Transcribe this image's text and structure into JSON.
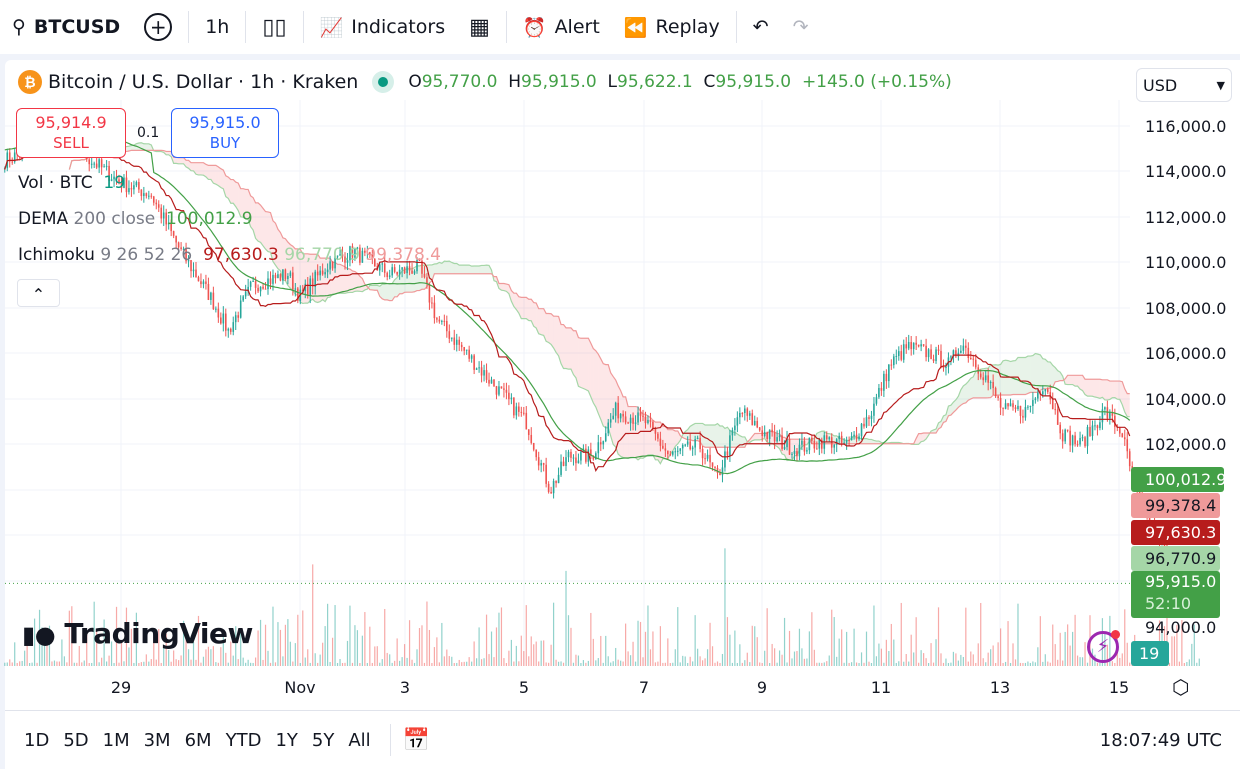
{
  "toolbar": {
    "symbol": "BTCUSD",
    "interval": "1h",
    "indicators": "Indicators",
    "alert": "Alert",
    "replay": "Replay"
  },
  "legend": {
    "title": "Bitcoin / U.S. Dollar · 1h · Kraken",
    "o_label": "O",
    "o": "95,770.0",
    "h_label": "H",
    "h": "95,915.0",
    "l_label": "L",
    "l": "95,622.1",
    "c_label": "C",
    "c": "95,915.0",
    "change": "+145.0 (+0.15%)"
  },
  "currency": "USD",
  "trade": {
    "sell_price": "95,914.9",
    "sell_label": "SELL",
    "spread": "0.1",
    "buy_price": "95,915.0",
    "buy_label": "BUY"
  },
  "indicators": {
    "vol": {
      "name": "Vol · BTC",
      "value": "19"
    },
    "dema": {
      "name": "DEMA",
      "params": "200 close",
      "value": "100,012.9"
    },
    "ichimoku": {
      "name": "Ichimoku",
      "params": "9 26 52 26",
      "v1": "97,630.3",
      "v2": "96,770.9",
      "v3": "99,378.4"
    }
  },
  "price_axis": [
    "116,000.0",
    "114,000.0",
    "112,000.0",
    "110,000.0",
    "108,000.0",
    "106,000.0",
    "104,000.0",
    "102,000.0",
    "94,000.0"
  ],
  "price_labels": {
    "dema": "100,012.9",
    "span_b": "99,378.4",
    "base": "97,630.3",
    "span_a": "96,770.9",
    "last": "95,915.0",
    "countdown": "52:10",
    "volume": "19"
  },
  "date_axis": [
    "29",
    "Nov",
    "3",
    "5",
    "7",
    "9",
    "11",
    "13",
    "15"
  ],
  "logo": "TradingView",
  "ranges": [
    "1D",
    "5D",
    "1M",
    "3M",
    "6M",
    "YTD",
    "1Y",
    "5Y",
    "All"
  ],
  "clock": "18:07:49 UTC",
  "price_path": [
    [
      -1.95,
      114500
    ],
    [
      -1.0,
      115500
    ],
    [
      -0.5,
      114500
    ],
    [
      0,
      113500
    ],
    [
      0.5,
      113000
    ],
    [
      1.0,
      110500
    ],
    [
      1.5,
      108500
    ],
    [
      1.8,
      107000
    ],
    [
      2.2,
      109000
    ],
    [
      2.8,
      109500
    ],
    [
      3.0,
      108500
    ],
    [
      3.5,
      110000
    ],
    [
      3.9,
      110500
    ],
    [
      4.5,
      109500
    ],
    [
      5.0,
      109800
    ],
    [
      5.3,
      107500
    ],
    [
      5.8,
      106000
    ],
    [
      6.3,
      104500
    ],
    [
      6.8,
      103000
    ],
    [
      7.2,
      100000
    ],
    [
      7.5,
      101500
    ],
    [
      7.9,
      101500
    ],
    [
      8.3,
      103500
    ],
    [
      8.8,
      103000
    ],
    [
      9.2,
      101500
    ],
    [
      9.7,
      102000
    ],
    [
      10.0,
      100500
    ],
    [
      10.4,
      103500
    ],
    [
      10.8,
      102500
    ],
    [
      11.3,
      101800
    ],
    [
      11.8,
      102200
    ],
    [
      12.2,
      102000
    ],
    [
      12.6,
      103500
    ],
    [
      12.9,
      105500
    ],
    [
      13.2,
      106300
    ],
    [
      13.6,
      106000
    ],
    [
      13.9,
      105500
    ],
    [
      14.1,
      106500
    ],
    [
      14.5,
      105000
    ],
    [
      14.8,
      103500
    ],
    [
      15.2,
      103500
    ],
    [
      15.5,
      104800
    ],
    [
      15.8,
      102500
    ],
    [
      16.1,
      102000
    ],
    [
      16.5,
      103500
    ],
    [
      16.8,
      102500
    ],
    [
      17.0,
      100000
    ],
    [
      17.3,
      98500
    ],
    [
      17.6,
      97000
    ],
    [
      17.9,
      94700
    ],
    [
      18.1,
      95915
    ]
  ]
}
